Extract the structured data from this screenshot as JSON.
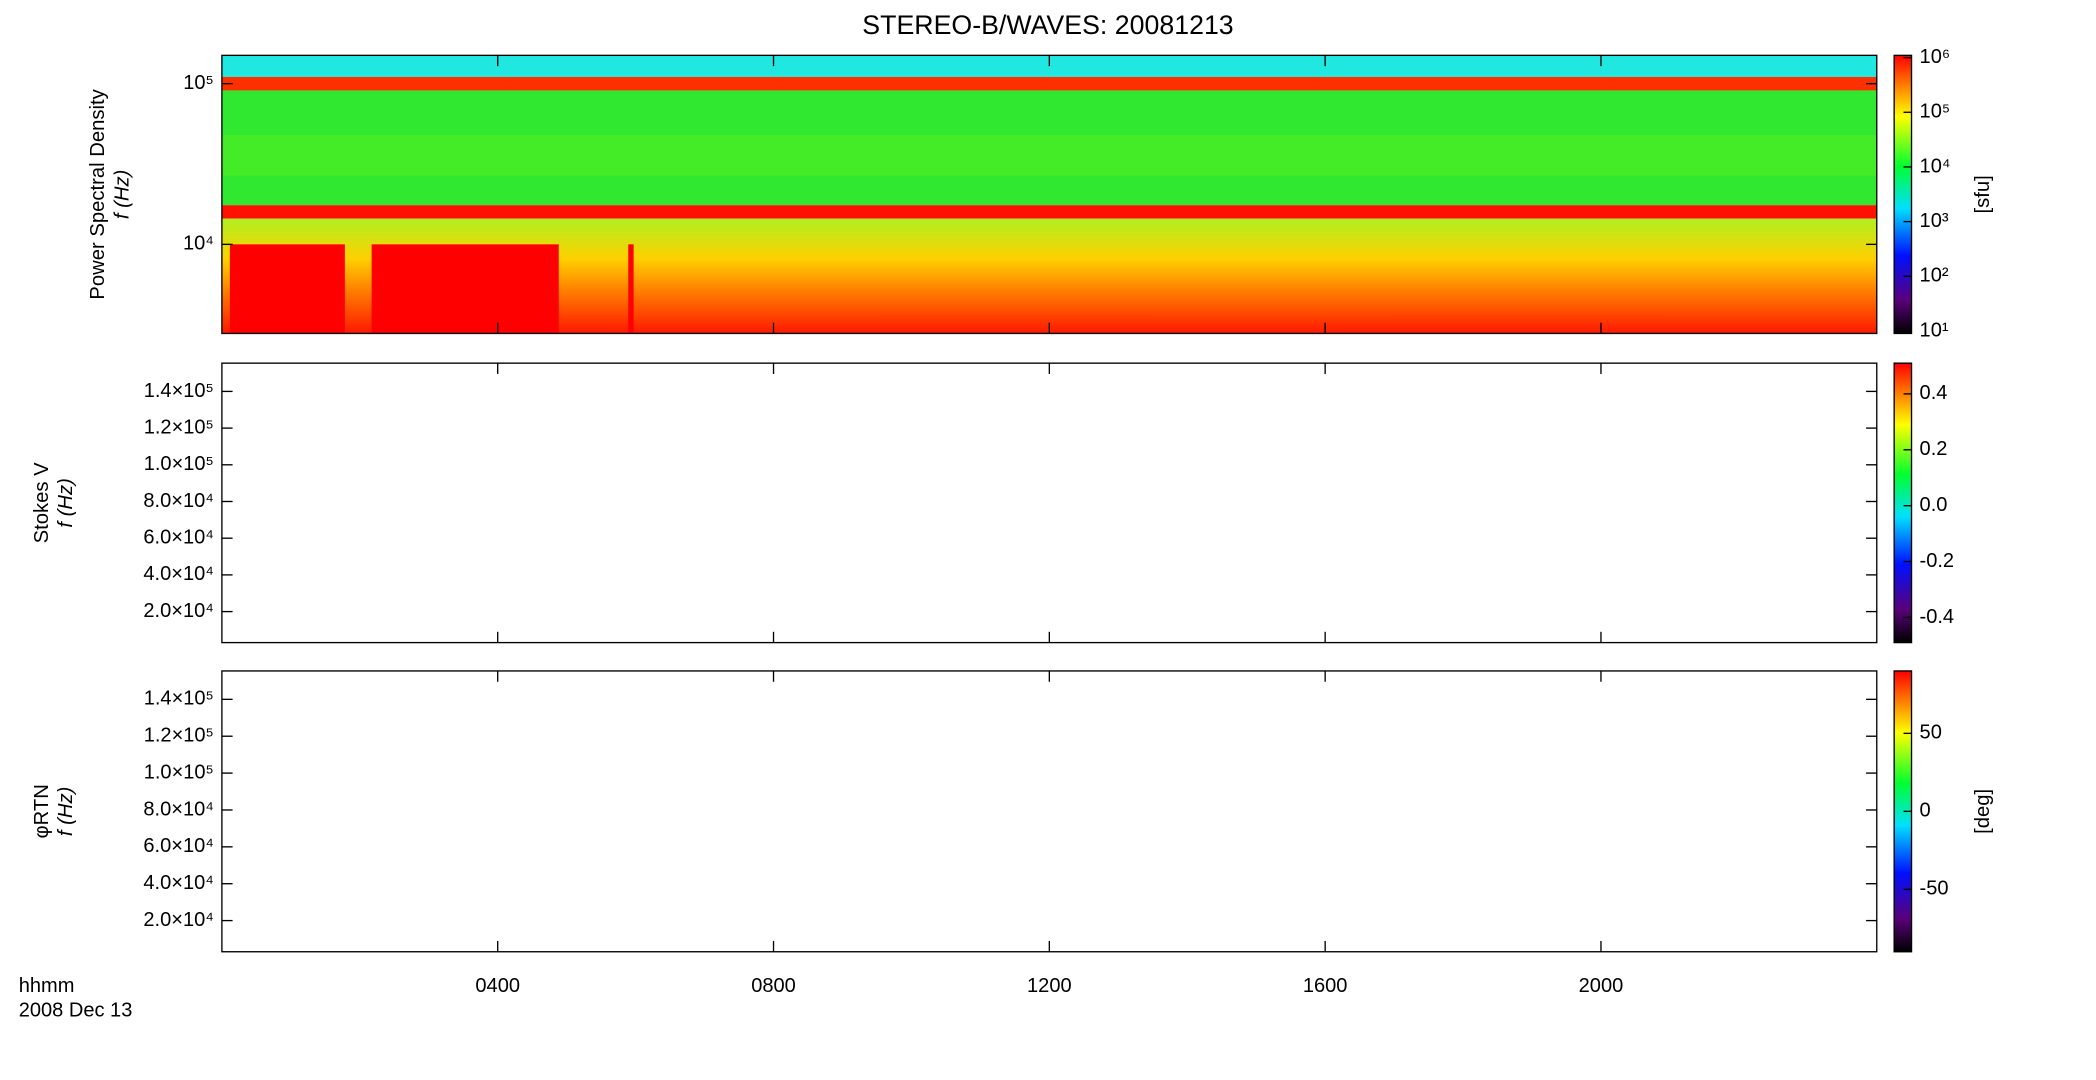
{
  "title": "STEREO-B/WAVES: 20081213",
  "x_axis": {
    "label": "hhmm",
    "date": "2008 Dec 13",
    "xlim": [
      0,
      24
    ],
    "xticks": [
      {
        "value": 4,
        "label": "0400"
      },
      {
        "value": 8,
        "label": "0800"
      },
      {
        "value": 12,
        "label": "1200"
      },
      {
        "value": 16,
        "label": "1600"
      },
      {
        "value": 20,
        "label": "2000"
      }
    ]
  },
  "chart_data": [
    {
      "type": "spectrogram",
      "y_label": [
        "Power Spectral Density",
        "f (Hz)"
      ],
      "log_y": true,
      "ylim": [
        2790,
        150000
      ],
      "yticks": [
        {
          "value": 10000,
          "label": "10⁴"
        },
        {
          "value": 100000,
          "label": "10⁵"
        }
      ],
      "colorbar": {
        "log": true,
        "lim": [
          9,
          1100000
        ],
        "label": "[sfu]",
        "ticks": [
          {
            "value": 10,
            "label": "10¹"
          },
          {
            "value": 100,
            "label": "10²"
          },
          {
            "value": 1000,
            "label": "10³"
          },
          {
            "value": 10000,
            "label": "10⁴"
          },
          {
            "value": 100000,
            "label": "10⁵"
          },
          {
            "value": 1000000,
            "label": "10⁶"
          }
        ]
      }
    },
    {
      "type": "spectrogram",
      "y_label": [
        "Stokes V",
        "f (Hz)"
      ],
      "log_y": false,
      "ylim": [
        3100,
        155400
      ],
      "yticks": [
        {
          "value": 20000,
          "label": "2.0×10⁴"
        },
        {
          "value": 40000,
          "label": "4.0×10⁴"
        },
        {
          "value": 60000,
          "label": "6.0×10⁴"
        },
        {
          "value": 80000,
          "label": "8.0×10⁴"
        },
        {
          "value": 100000,
          "label": "1.0×10⁵"
        },
        {
          "value": 120000,
          "label": "1.2×10⁵"
        },
        {
          "value": 140000,
          "label": "1.4×10⁵"
        }
      ],
      "colorbar": {
        "log": false,
        "lim": [
          -0.49,
          0.51
        ],
        "ticks": [
          -0.4,
          -0.2,
          {
            "value": 0,
            "label": "0.0"
          },
          0.2,
          0.4
        ]
      }
    },
    {
      "type": "spectrogram",
      "y_label": [
        "φRTN",
        "f (Hz)"
      ],
      "log_y": false,
      "ylim": [
        3100,
        155400
      ],
      "yticks": [
        {
          "value": 20000,
          "label": "2.0×10⁴"
        },
        {
          "value": 40000,
          "label": "4.0×10⁴"
        },
        {
          "value": 60000,
          "label": "6.0×10⁴"
        },
        {
          "value": 80000,
          "label": "8.0×10⁴"
        },
        {
          "value": 100000,
          "label": "1.0×10⁵"
        },
        {
          "value": 120000,
          "label": "1.2×10⁵"
        },
        {
          "value": 140000,
          "label": "1.4×10⁵"
        }
      ],
      "colorbar": {
        "log": false,
        "lim": [
          -90,
          90
        ],
        "label": "[deg]",
        "ticks": [
          -50,
          0,
          50
        ]
      }
    }
  ]
}
